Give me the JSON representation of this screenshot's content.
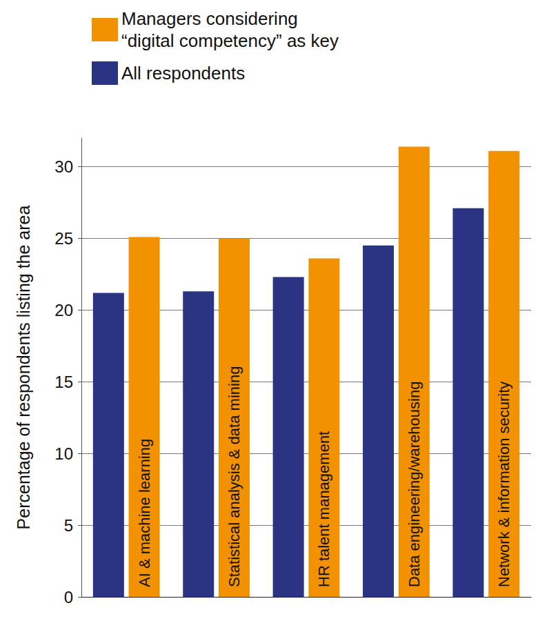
{
  "chart_data": {
    "type": "bar",
    "categories": [
      "AI & machine learning",
      "Statistical analysis & data mining",
      "HR talent management",
      "Data engineering/warehousing",
      "Network & information security"
    ],
    "series": [
      {
        "name": "All respondents",
        "color": "#2b3383",
        "values": [
          21.2,
          21.3,
          22.3,
          24.5,
          27.1
        ]
      },
      {
        "name": "Managers considering “digital competency” as key",
        "color": "#f39200",
        "values": [
          25.1,
          25.0,
          23.6,
          31.4,
          31.1
        ]
      }
    ],
    "y_label": "Percentage of respondents listing the area",
    "ylim": [
      0,
      32
    ],
    "yticks": [
      0,
      5,
      10,
      15,
      20,
      25,
      30
    ],
    "grid": true,
    "legend": "top-left",
    "tick_labels": "y"
  }
}
